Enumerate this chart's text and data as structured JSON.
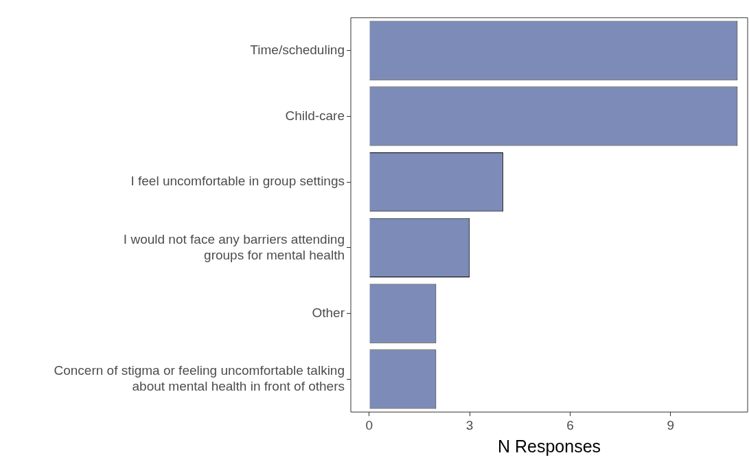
{
  "chart_data": {
    "type": "bar",
    "orientation": "horizontal",
    "categories": [
      "Time/scheduling",
      "Child-care",
      "I feel uncomfortable in group settings",
      "I would not face any barriers attending\ngroups for mental health",
      "Other",
      "Concern of stigma or feeling uncomfortable talking\nabout mental health in front of others"
    ],
    "values": [
      11,
      11,
      4,
      3,
      2,
      2
    ],
    "color": "#7d8bb8",
    "xlabel": "N Responses",
    "xlim": [
      -0.55,
      11.3
    ],
    "xticks": [
      0,
      3,
      6,
      9
    ],
    "grid": false,
    "legend": false
  }
}
